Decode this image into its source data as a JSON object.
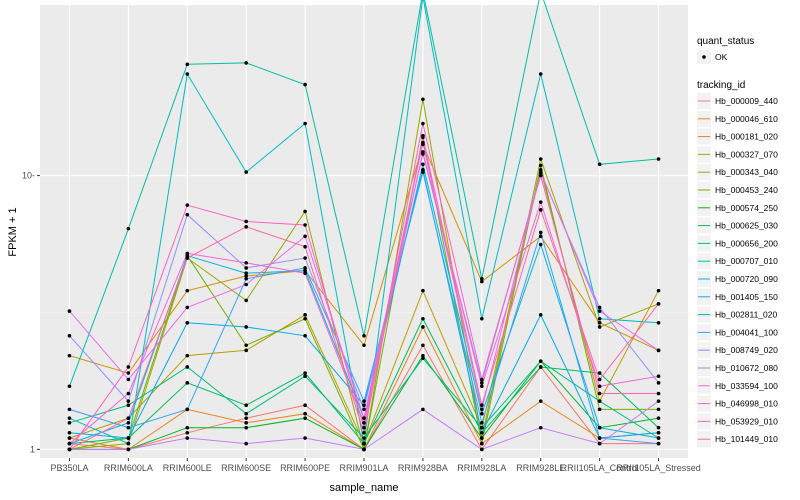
{
  "chart_data": {
    "type": "line",
    "xlabel": "sample_name",
    "ylabel": "FPKM + 1",
    "y_scale": "log10",
    "ylim": [
      0.93,
      42
    ],
    "yticks": [
      1,
      10
    ],
    "ytick_labels": [
      "1",
      "10-"
    ],
    "grid": true,
    "legend_placement": "right",
    "categories": [
      "PB350LA",
      "RRIM600LA",
      "RRIM600LE",
      "RRIM600SE",
      "RRIM600PE",
      "RRIM901LA",
      "RRIM928BA",
      "RRIM928LA",
      "RRIM928LE",
      "RRII105LA_Control",
      "RRII105LA_Stressed"
    ],
    "series": [
      {
        "name": "Hb_000009_440",
        "color": "#F8766D",
        "values": [
          1.05,
          1.0,
          1.15,
          1.3,
          1.45,
          1.0,
          2.4,
          1.0,
          2.0,
          1.05,
          1.05
        ]
      },
      {
        "name": "Hb_000046_610",
        "color": "#E7861B",
        "values": [
          1.1,
          1.0,
          1.4,
          1.25,
          1.35,
          1.0,
          2.8,
          1.05,
          1.5,
          1.1,
          1.15
        ]
      },
      {
        "name": "Hb_000181_020",
        "color": "#D39200",
        "values": [
          2.2,
          1.9,
          3.8,
          4.3,
          4.5,
          2.4,
          13.0,
          4.1,
          6.0,
          2.9,
          2.3
        ]
      },
      {
        "name": "Hb_000327_070",
        "color": "#BA9E00",
        "values": [
          1.1,
          1.3,
          2.2,
          2.3,
          3.1,
          1.05,
          3.8,
          1.2,
          10.5,
          1.5,
          3.8
        ]
      },
      {
        "name": "Hb_000343_040",
        "color": "#99A800",
        "values": [
          1.0,
          1.05,
          5.0,
          3.5,
          7.4,
          1.0,
          19.0,
          1.1,
          11.5,
          2.8,
          3.4
        ]
      },
      {
        "name": "Hb_000453_240",
        "color": "#6FB000",
        "values": [
          1.0,
          1.1,
          5.1,
          2.4,
          3.0,
          1.0,
          14.0,
          1.05,
          10.9,
          1.4,
          1.4
        ]
      },
      {
        "name": "Hb_000574_250",
        "color": "#00B81F",
        "values": [
          1.0,
          1.0,
          1.2,
          1.2,
          1.3,
          1.0,
          2.2,
          1.1,
          2.1,
          1.2,
          1.3
        ]
      },
      {
        "name": "Hb_000625_030",
        "color": "#00BC59",
        "values": [
          1.05,
          1.1,
          1.75,
          1.45,
          1.9,
          1.05,
          3.0,
          1.15,
          2.0,
          1.9,
          1.2
        ]
      },
      {
        "name": "Hb_000656_200",
        "color": "#00BE83",
        "values": [
          1.25,
          1.45,
          2.0,
          1.35,
          1.85,
          1.1,
          2.15,
          1.2,
          2.1,
          1.5,
          1.1
        ]
      },
      {
        "name": "Hb_000707_010",
        "color": "#00BFA4",
        "values": [
          1.7,
          6.4,
          25.5,
          25.8,
          21.5,
          2.6,
          47.0,
          4.2,
          47.0,
          11.0,
          11.5
        ]
      },
      {
        "name": "Hb_000720_090",
        "color": "#00BCC1",
        "values": [
          1.3,
          1.05,
          23.5,
          10.3,
          15.5,
          1.05,
          45.0,
          3.0,
          23.5,
          3.0,
          2.9
        ]
      },
      {
        "name": "Hb_001405_150",
        "color": "#00B6D7",
        "values": [
          1.05,
          1.25,
          5.1,
          4.4,
          4.5,
          1.3,
          11.0,
          1.35,
          5.6,
          1.2,
          1.1
        ]
      },
      {
        "name": "Hb_002811_020",
        "color": "#00ACEC",
        "values": [
          1.15,
          1.1,
          2.9,
          2.8,
          2.6,
          1.45,
          10.5,
          1.15,
          3.1,
          1.1,
          1.15
        ]
      },
      {
        "name": "Hb_004041_100",
        "color": "#35A2FF",
        "values": [
          1.4,
          1.2,
          1.4,
          4.2,
          4.6,
          1.5,
          10.3,
          1.25,
          6.2,
          1.1,
          1.05
        ]
      },
      {
        "name": "Hb_008749_020",
        "color": "#8F91FF",
        "values": [
          2.6,
          1.5,
          7.2,
          4.6,
          5.0,
          1.4,
          12.0,
          1.75,
          10.2,
          3.3,
          1.75
        ]
      },
      {
        "name": "Hb_010672_080",
        "color": "#C77CFF",
        "values": [
          1.0,
          1.0,
          1.1,
          1.05,
          1.1,
          1.0,
          1.4,
          1.0,
          1.2,
          1.05,
          1.5
        ]
      },
      {
        "name": "Hb_033594_100",
        "color": "#E76BF3",
        "values": [
          3.2,
          1.8,
          3.3,
          4.0,
          6.0,
          1.3,
          13.2,
          1.4,
          10.3,
          3.2,
          2.3
        ]
      },
      {
        "name": "Hb_046998_010",
        "color": "#F962DD",
        "values": [
          1.05,
          1.6,
          5.2,
          4.8,
          4.4,
          1.25,
          12.2,
          1.7,
          8.0,
          1.7,
          1.85
        ]
      },
      {
        "name": "Hb_053929_010",
        "color": "#FF61C3",
        "values": [
          1.0,
          2.0,
          7.8,
          6.8,
          6.6,
          1.2,
          15.5,
          1.8,
          10.0,
          1.6,
          1.6
        ]
      },
      {
        "name": "Hb_101449_010",
        "color": "#FF67A4",
        "values": [
          1.0,
          1.3,
          5.0,
          6.5,
          5.5,
          1.15,
          13.8,
          1.45,
          7.5,
          1.8,
          3.4
        ]
      }
    ],
    "legends": [
      {
        "title": "quant_status",
        "entries": [
          "OK"
        ]
      },
      {
        "title": "tracking_id",
        "entries": [
          "Hb_000009_440",
          "Hb_000046_610",
          "Hb_000181_020",
          "Hb_000327_070",
          "Hb_000343_040",
          "Hb_000453_240",
          "Hb_000574_250",
          "Hb_000625_030",
          "Hb_000656_200",
          "Hb_000707_010",
          "Hb_000720_090",
          "Hb_001405_150",
          "Hb_002811_020",
          "Hb_004041_100",
          "Hb_008749_020",
          "Hb_010672_080",
          "Hb_033594_100",
          "Hb_046998_010",
          "Hb_053929_010",
          "Hb_101449_010"
        ]
      }
    ],
    "colors": {
      "panel": "#EBEBEB",
      "grid_major": "#FFFFFF",
      "point": "#000000"
    }
  }
}
